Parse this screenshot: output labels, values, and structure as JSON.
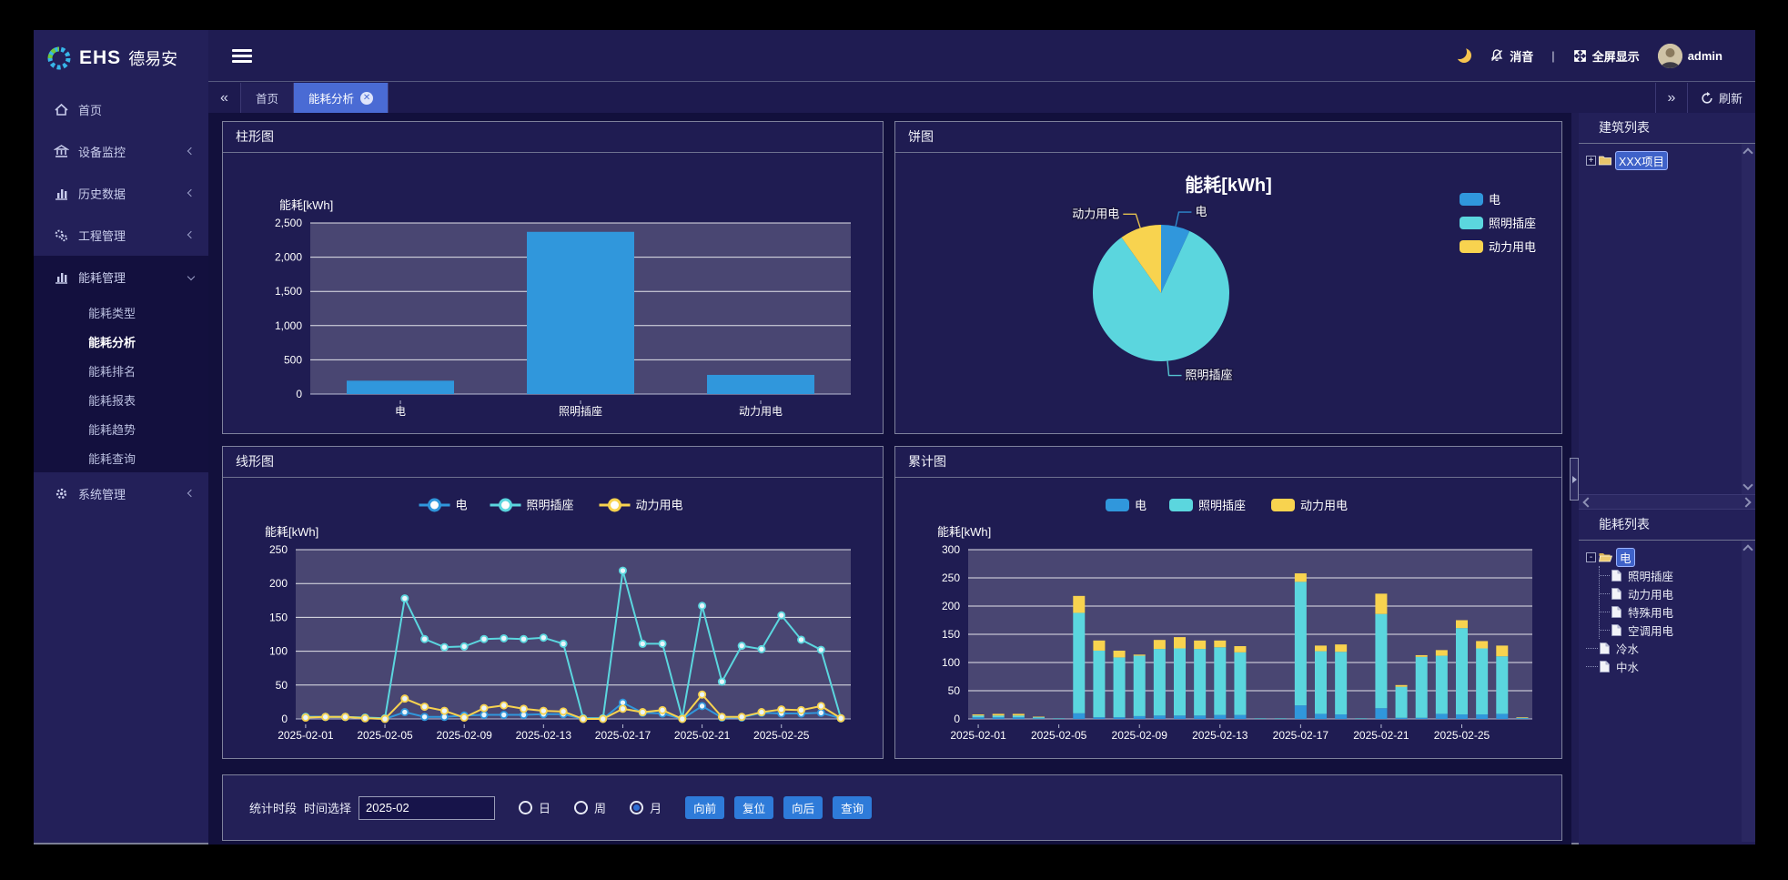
{
  "brand": {
    "ehs": "EHS",
    "name": "德易安"
  },
  "header": {
    "mute": "消音",
    "divider": "|",
    "fullscreen": "全屏显示",
    "user": "admin"
  },
  "tabs": {
    "back": "«",
    "forward": "»",
    "refresh": "刷新",
    "items": [
      {
        "label": "首页",
        "active": false,
        "closable": false
      },
      {
        "label": "能耗分析",
        "active": true,
        "closable": true
      }
    ]
  },
  "sidebar": {
    "items": [
      {
        "label": "首页",
        "icon": "home-icon",
        "chevron": null,
        "expanded": false,
        "children": []
      },
      {
        "label": "设备监控",
        "icon": "monitor-icon",
        "chevron": "left",
        "expanded": false,
        "children": []
      },
      {
        "label": "历史数据",
        "icon": "history-icon",
        "chevron": "left",
        "expanded": false,
        "children": []
      },
      {
        "label": "工程管理",
        "icon": "project-icon",
        "chevron": "left",
        "expanded": false,
        "children": []
      },
      {
        "label": "能耗管理",
        "icon": "energy-icon",
        "chevron": "down",
        "expanded": true,
        "children": [
          {
            "label": "能耗类型",
            "active": false
          },
          {
            "label": "能耗分析",
            "active": true
          },
          {
            "label": "能耗排名",
            "active": false
          },
          {
            "label": "能耗报表",
            "active": false
          },
          {
            "label": "能耗趋势",
            "active": false
          },
          {
            "label": "能耗查询",
            "active": false
          }
        ]
      },
      {
        "label": "系统管理",
        "icon": "system-icon",
        "chevron": "left",
        "expanded": false,
        "children": []
      }
    ]
  },
  "panels": {
    "bar": "柱形图",
    "pie": "饼图",
    "line": "线形图",
    "stack": "累计图"
  },
  "colors": {
    "blue": "#3097dc",
    "cyan": "#5bd6de",
    "yellow": "#f8d34f",
    "plot_bg": "#494672",
    "grid_line": "#ffffff",
    "axis_text": "#ffffff",
    "panel_bg": "#1f1c52",
    "accent_tab": "#4a6bd4",
    "button": "#2e7bd9"
  },
  "chart_data": [
    {
      "type": "bar",
      "panel": "柱形图",
      "ylabel": "能耗[kWh]",
      "categories": [
        "电",
        "照明插座",
        "动力用电"
      ],
      "values": [
        195,
        2370,
        280
      ],
      "ylim": [
        0,
        2500
      ],
      "ytick_step": 500,
      "grid": true,
      "legend": false
    },
    {
      "type": "pie",
      "panel": "饼图",
      "title": "能耗[kWh]",
      "labels": [
        "电",
        "照明插座",
        "动力用电"
      ],
      "values": [
        195,
        2370,
        280
      ],
      "legend_position": "right"
    },
    {
      "type": "line",
      "panel": "线形图",
      "ylabel": "能耗[kWh]",
      "x": [
        "2025-02-01",
        "2025-02-02",
        "2025-02-03",
        "2025-02-04",
        "2025-02-05",
        "2025-02-06",
        "2025-02-07",
        "2025-02-08",
        "2025-02-09",
        "2025-02-10",
        "2025-02-11",
        "2025-02-12",
        "2025-02-13",
        "2025-02-14",
        "2025-02-15",
        "2025-02-16",
        "2025-02-17",
        "2025-02-18",
        "2025-02-19",
        "2025-02-20",
        "2025-02-21",
        "2025-02-22",
        "2025-02-23",
        "2025-02-24",
        "2025-02-25",
        "2025-02-26",
        "2025-02-27",
        "2025-02-28"
      ],
      "x_tick_indices": [
        0,
        4,
        8,
        12,
        16,
        20,
        24
      ],
      "ylim": [
        0,
        250
      ],
      "ytick_step": 50,
      "legend_position": "top",
      "series": [
        {
          "name": "电",
          "values": [
            3,
            3,
            3,
            1,
            0,
            10,
            3,
            3,
            5,
            6,
            6,
            6,
            7,
            7,
            0,
            0,
            24,
            9,
            8,
            0,
            19,
            2,
            2,
            9,
            8,
            8,
            9,
            1
          ]
        },
        {
          "name": "照明插座",
          "values": [
            3,
            3,
            3,
            2,
            1,
            178,
            118,
            106,
            107,
            118,
            119,
            118,
            120,
            111,
            1,
            1,
            219,
            111,
            111,
            1,
            167,
            55,
            108,
            103,
            153,
            117,
            102,
            1
          ]
        },
        {
          "name": "动力用电",
          "values": [
            2,
            3,
            3,
            1,
            0,
            30,
            18,
            12,
            2,
            16,
            20,
            15,
            12,
            11,
            0,
            0,
            15,
            10,
            13,
            0,
            36,
            3,
            3,
            10,
            14,
            13,
            19,
            1
          ]
        }
      ]
    },
    {
      "type": "bar-stacked",
      "panel": "累计图",
      "ylabel": "能耗[kWh]",
      "x": [
        "2025-02-01",
        "2025-02-02",
        "2025-02-03",
        "2025-02-04",
        "2025-02-05",
        "2025-02-06",
        "2025-02-07",
        "2025-02-08",
        "2025-02-09",
        "2025-02-10",
        "2025-02-11",
        "2025-02-12",
        "2025-02-13",
        "2025-02-14",
        "2025-02-15",
        "2025-02-16",
        "2025-02-17",
        "2025-02-18",
        "2025-02-19",
        "2025-02-20",
        "2025-02-21",
        "2025-02-22",
        "2025-02-23",
        "2025-02-24",
        "2025-02-25",
        "2025-02-26",
        "2025-02-27",
        "2025-02-28"
      ],
      "x_tick_indices": [
        0,
        4,
        8,
        12,
        16,
        20,
        24
      ],
      "ylim": [
        0,
        300
      ],
      "ytick_step": 50,
      "legend_position": "top",
      "series": [
        {
          "name": "电",
          "values": [
            3,
            3,
            3,
            1,
            0,
            10,
            3,
            3,
            5,
            6,
            6,
            6,
            7,
            7,
            0,
            0,
            24,
            9,
            8,
            0,
            19,
            2,
            2,
            9,
            8,
            8,
            9,
            1
          ]
        },
        {
          "name": "照明插座",
          "values": [
            3,
            3,
            3,
            2,
            1,
            178,
            118,
            106,
            107,
            118,
            119,
            118,
            120,
            111,
            1,
            1,
            219,
            111,
            111,
            1,
            167,
            55,
            108,
            103,
            153,
            117,
            102,
            1
          ]
        },
        {
          "name": "动力用电",
          "values": [
            2,
            3,
            3,
            1,
            0,
            30,
            18,
            12,
            2,
            16,
            20,
            15,
            12,
            11,
            0,
            0,
            15,
            10,
            13,
            0,
            36,
            3,
            3,
            10,
            14,
            13,
            19,
            1
          ]
        }
      ]
    }
  ],
  "right_sidebar": {
    "building_title": "建筑列表",
    "building_tree": [
      {
        "label": "XXX项目",
        "icon": "folder",
        "expander": "+",
        "selected": true,
        "children": []
      }
    ],
    "energy_title": "能耗列表",
    "energy_tree": [
      {
        "label": "电",
        "icon": "folder-open",
        "expander": "-",
        "selected": true,
        "children": [
          {
            "label": "照明插座",
            "icon": "page"
          },
          {
            "label": "动力用电",
            "icon": "page"
          },
          {
            "label": "特殊用电",
            "icon": "page"
          },
          {
            "label": "空调用电",
            "icon": "page"
          }
        ]
      },
      {
        "label": "冷水",
        "icon": "page",
        "expander": null,
        "selected": false,
        "children": []
      },
      {
        "label": "中水",
        "icon": "page",
        "expander": null,
        "selected": false,
        "children": []
      }
    ]
  },
  "toolbar": {
    "period_label": "统计时段",
    "time_label": "时间选择",
    "time_value": "2025-02",
    "radios": [
      {
        "label": "日",
        "selected": false
      },
      {
        "label": "周",
        "selected": false
      },
      {
        "label": "月",
        "selected": true
      }
    ],
    "buttons": [
      "向前",
      "复位",
      "向后",
      "查询"
    ]
  }
}
